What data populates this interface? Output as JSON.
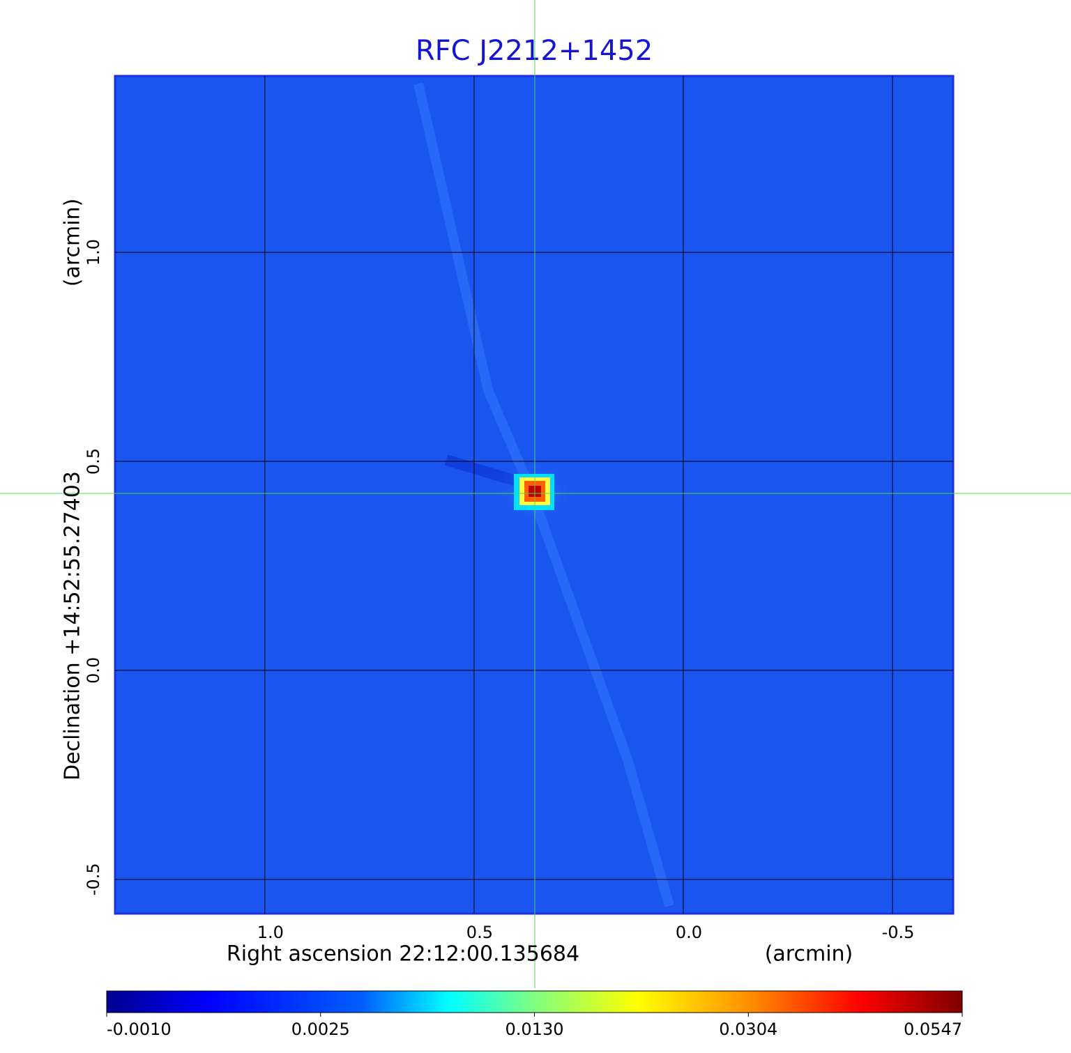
{
  "chart_data": {
    "type": "image",
    "title": "RFC J2212+1452",
    "x_label": "Right ascension  22:12:00.135684",
    "x_unit": "(arcmin)",
    "y_label": "Declination  +14:52:55.27403",
    "y_unit": "(arcmin)",
    "xlim": [
      1.358,
      -0.645
    ],
    "ylim": [
      -0.582,
      1.422
    ],
    "xticks": [
      {
        "value": 1,
        "label": "1.0"
      },
      {
        "value": 0.5,
        "label": "0.5"
      },
      {
        "value": 0,
        "label": "0.0"
      },
      {
        "value": -0.5,
        "label": "-0.5"
      }
    ],
    "yticks": [
      {
        "value": 1,
        "label": "1.0"
      },
      {
        "value": 0.5,
        "label": "0.5"
      },
      {
        "value": 0,
        "label": "0.0"
      },
      {
        "value": -0.5,
        "label": "-0.5"
      }
    ],
    "grid": true,
    "colorbar_lim": [
      -0.001,
      0.0547
    ],
    "colorbar_ticks": [
      {
        "value": -0.001,
        "label": "-0.0010"
      },
      {
        "value": 0.0025,
        "label": "0.0025"
      },
      {
        "value": 0.013,
        "label": "0.0130"
      },
      {
        "value": 0.0304,
        "label": "0.0304"
      },
      {
        "value": 0.0547,
        "label": "0.0547"
      }
    ]
  }
}
